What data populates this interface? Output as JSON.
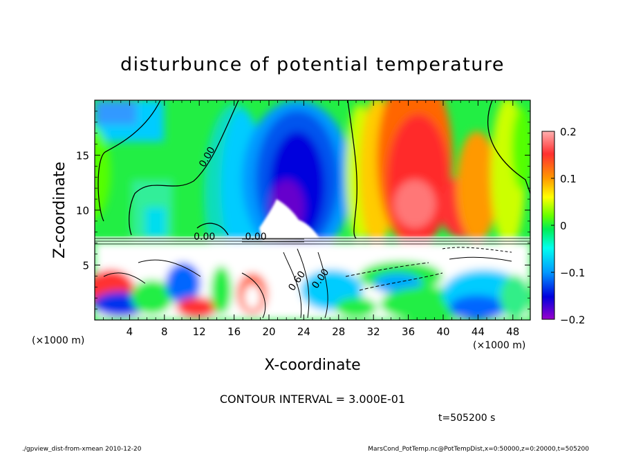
{
  "chart_data": {
    "type": "heatmap",
    "title": "disturbunce of potential temperature",
    "xlabel": "X-coordinate",
    "ylabel": "Z-coordinate",
    "x_unit_left": "(×1000 m)",
    "x_unit_right": "(×1000 m)",
    "xlim": [
      0,
      50
    ],
    "ylim": [
      0,
      20
    ],
    "x_ticks": [
      4,
      8,
      12,
      16,
      20,
      24,
      28,
      32,
      36,
      40,
      44,
      48
    ],
    "y_ticks": [
      5,
      10,
      15
    ],
    "colorbar": {
      "range": [
        -0.2,
        0.2
      ],
      "tick_values": [
        0.2,
        0.1,
        0,
        -0.1,
        -0.2
      ],
      "tick_labels": [
        "0.2",
        "0.1",
        "0",
        "−0.1",
        "−0.2"
      ]
    },
    "contour_labels": [
      {
        "text": "0.00",
        "x": 13.2,
        "z": 14.7
      },
      {
        "text": "0.00",
        "x": 12.6,
        "z": 7.3
      },
      {
        "text": "0.00",
        "x": 18.5,
        "z": 7.3
      },
      {
        "text": "0.60",
        "x": 23.5,
        "z": 3.4
      },
      {
        "text": "0.00",
        "x": 26.2,
        "z": 3.6
      }
    ],
    "contour_interval": "CONTOUR INTERVAL = 3.000E-01",
    "time_label": "t=505200 s",
    "footer_left": "./gpview_dist-from-xmean  2010-12-20",
    "footer_right": "MarsCond_PotTemp.nc@PotTempDist,x=0:50000,z=0:20000,t=505200"
  }
}
